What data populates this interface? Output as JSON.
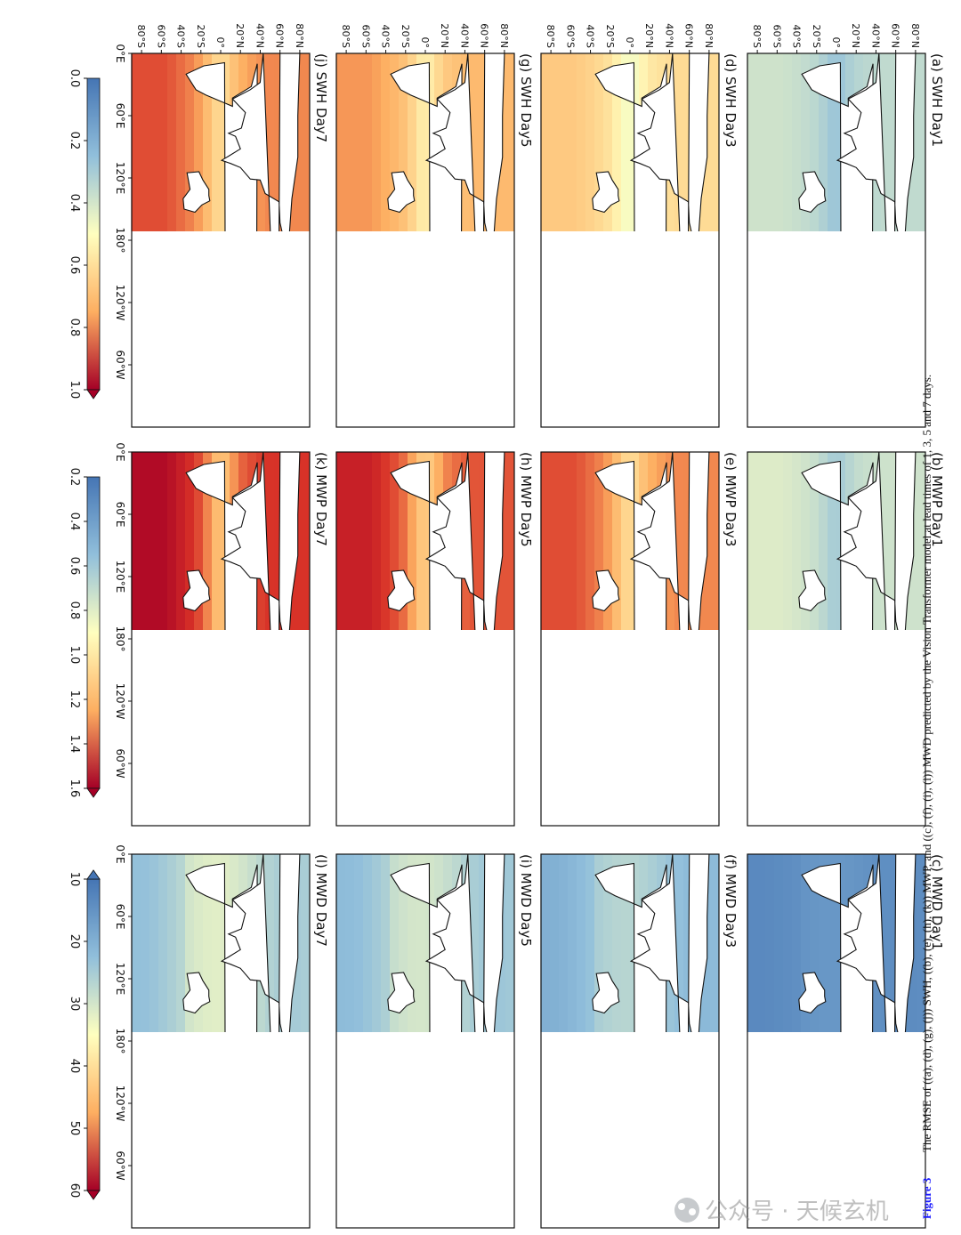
{
  "figure": {
    "label": "Figure 3",
    "caption": "The RMSE of ((a), (d), (g), (j)) SWH, ((b), (e), (h), (k)) MWP, and ((c), (f), (i), (l)) MWD predicted by the Vision Transformer model at lead times of 1, 3, 5 and 7 days.",
    "watermark": "公众号 · 天候玄机"
  },
  "panels": [
    {
      "title": "(a) SWH Day1",
      "variable": "SWH",
      "lead_day": 1,
      "level": 0.35
    },
    {
      "title": "(d) SWH Day3",
      "variable": "SWH",
      "lead_day": 3,
      "level": 0.6
    },
    {
      "title": "(g) SWH Day5",
      "variable": "SWH",
      "lead_day": 5,
      "level": 0.7
    },
    {
      "title": "(j) SWH Day7",
      "variable": "SWH",
      "lead_day": 7,
      "level": 0.78
    },
    {
      "title": "(b) MWP Day1",
      "variable": "MWP",
      "lead_day": 1,
      "level": 0.38
    },
    {
      "title": "(e) MWP Day3",
      "variable": "MWP",
      "lead_day": 3,
      "level": 0.78
    },
    {
      "title": "(h) MWP Day5",
      "variable": "MWP",
      "lead_day": 5,
      "level": 0.84
    },
    {
      "title": "(k) MWP Day7",
      "variable": "MWP",
      "lead_day": 7,
      "level": 0.88
    },
    {
      "title": "(c) MWD Day1",
      "variable": "MWD",
      "lead_day": 1,
      "level": 0.12
    },
    {
      "title": "(f) MWD Day3",
      "variable": "MWD",
      "lead_day": 3,
      "level": 0.35
    },
    {
      "title": "(i) MWD Day5",
      "variable": "MWD",
      "lead_day": 5,
      "level": 0.42
    },
    {
      "title": "(l) MWD Day7",
      "variable": "MWD",
      "lead_day": 7,
      "level": 0.45
    }
  ],
  "axes": {
    "lat_ticks": [
      "80°N",
      "60°N",
      "40°N",
      "20°N",
      "0°",
      "20°S",
      "40°S",
      "60°S",
      "80°S"
    ],
    "lon_ticks": [
      "0°E",
      "60°E",
      "120°E",
      "180°",
      "120°W",
      "60°W"
    ]
  },
  "colorbars": [
    {
      "variable": "SWH",
      "ticks": [
        "0.0",
        "0.2",
        "0.4",
        "0.6",
        "0.8",
        "1.0"
      ],
      "range": [
        0.0,
        1.0
      ],
      "extend": "max"
    },
    {
      "variable": "MWP",
      "ticks": [
        "0.2",
        "0.4",
        "0.6",
        "0.8",
        "1.0",
        "1.2",
        "1.4",
        "1.6"
      ],
      "range": [
        0.2,
        1.6
      ],
      "extend": "max"
    },
    {
      "variable": "MWD",
      "ticks": [
        "10",
        "20",
        "30",
        "40",
        "50",
        "60"
      ],
      "range": [
        10,
        60
      ],
      "extend": "both"
    }
  ],
  "colors": {
    "low": "#4575b4",
    "mid_low": "#91bfdb",
    "mid": "#ffffbf",
    "mid_high": "#fdae61",
    "high": "#d73027",
    "max": "#a50026",
    "land": "#ffffff",
    "coast": "#111111",
    "caption_label": "#1a1aff"
  }
}
